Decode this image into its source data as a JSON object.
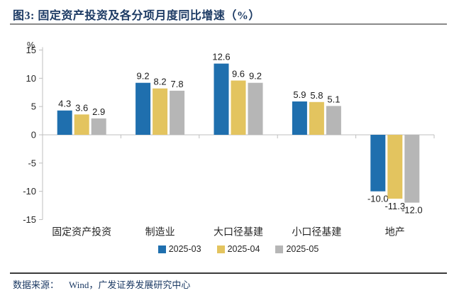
{
  "title": "图3:  固定资产投资及各分项月度同比增速（%）",
  "footer": {
    "label": "数据来源：",
    "source": "Wind，广发证券发展研究中心"
  },
  "colors": {
    "accent_navy": "#1C3A64",
    "axis_gray": "#BFBFBF",
    "label_dark": "#1A1A1A",
    "tick_dark": "#262626"
  },
  "chart_data": {
    "type": "bar",
    "title": "固定资产投资及各分项月度同比增速（%）",
    "unit_label": "%",
    "xlabel": "",
    "ylabel": "%",
    "categories": [
      "固定资产投资",
      "制造业",
      "大口径基建",
      "小口径基建",
      "地产"
    ],
    "series": [
      {
        "name": "2025-03",
        "color": "#1F6FAE",
        "values": [
          4.3,
          9.2,
          12.6,
          5.9,
          -10.0
        ]
      },
      {
        "name": "2025-04",
        "color": "#E3C45F",
        "values": [
          3.6,
          8.2,
          9.6,
          5.8,
          -11.3
        ]
      },
      {
        "name": "2025-05",
        "color": "#B6B6B6",
        "values": [
          2.9,
          7.8,
          9.2,
          5.1,
          -12.0
        ]
      }
    ],
    "ylim": [
      -15,
      15
    ],
    "yticks": [
      15,
      10,
      5,
      0,
      -5,
      -10,
      -15
    ],
    "grid": false,
    "legend_position": "bottom"
  }
}
